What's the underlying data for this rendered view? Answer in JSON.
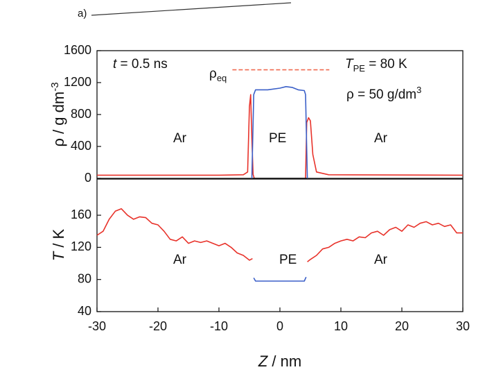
{
  "panel_label": "a)",
  "chart_data": [
    {
      "type": "line",
      "xlim": [
        -30,
        30
      ],
      "ylim": [
        0,
        1600
      ],
      "yticks": [
        0,
        400,
        800,
        1200,
        1600
      ],
      "ylabel": [
        "ρ / g dm",
        "-3"
      ],
      "annotations": [
        {
          "parts": [
            "t",
            " = 0.5 ns"
          ]
        },
        {
          "parts": [
            "ρ",
            "eq"
          ]
        },
        {
          "parts": [
            "T",
            "PE",
            " = 80 K"
          ]
        },
        {
          "parts": [
            "ρ = 50 g/dm",
            "3"
          ]
        },
        {
          "parts": [
            "Ar"
          ]
        },
        {
          "parts": [
            "PE"
          ]
        },
        {
          "parts": [
            "Ar"
          ]
        }
      ],
      "series": [
        {
          "color": "#e8322a",
          "x": [
            -30,
            -20,
            -10,
            -6,
            -5.3,
            -5,
            -4.8,
            -4.6,
            -4.4,
            -4.2
          ],
          "values": [
            40,
            40,
            40,
            45,
            80,
            900,
            1050,
            500,
            50,
            0
          ]
        },
        {
          "color": "#e8322a",
          "x": [
            4.2,
            4.4,
            4.7,
            5,
            5.4,
            6,
            8,
            30
          ],
          "values": [
            0,
            700,
            760,
            720,
            300,
            80,
            45,
            40
          ]
        },
        {
          "color": "#111111",
          "x": [
            -4.4,
            4.4
          ],
          "values": [
            0,
            0
          ]
        },
        {
          "color": "#3a5fc8",
          "x": [
            -4.6,
            -4.3,
            -4,
            -2,
            0,
            1,
            2,
            3,
            4,
            4.2,
            4.5
          ],
          "values": [
            0,
            1050,
            1110,
            1110,
            1130,
            1150,
            1140,
            1110,
            1100,
            1050,
            0
          ]
        },
        {
          "color": "#f06a50",
          "dashed": true,
          "x": [
            -7.8,
            8.1
          ],
          "values": [
            1360,
            1360
          ]
        }
      ]
    },
    {
      "type": "line",
      "xlim": [
        -30,
        30
      ],
      "xticks": [
        -30,
        -20,
        -10,
        0,
        10,
        20,
        30
      ],
      "ylim": [
        40,
        205
      ],
      "yticks": [
        40,
        80,
        120,
        160
      ],
      "ylabel": [
        "T",
        " / K"
      ],
      "xlabel": [
        "Z",
        " / nm"
      ],
      "annotations": [
        {
          "parts": [
            "Ar"
          ]
        },
        {
          "parts": [
            "PE"
          ]
        },
        {
          "parts": [
            "Ar"
          ]
        }
      ],
      "series": [
        {
          "color": "#e8322a",
          "x": [
            -30,
            -29,
            -28,
            -27,
            -26,
            -25,
            -24,
            -23,
            -22,
            -21,
            -20,
            -19,
            -18,
            -17,
            -16,
            -15,
            -14,
            -13,
            -12,
            -11,
            -10,
            -9,
            -8,
            -7,
            -6,
            -5,
            -4.5
          ],
          "values": [
            135,
            140,
            155,
            165,
            168,
            160,
            155,
            158,
            157,
            150,
            148,
            140,
            130,
            128,
            133,
            125,
            128,
            126,
            128,
            125,
            122,
            125,
            120,
            113,
            110,
            104,
            106
          ]
        },
        {
          "color": "#e8322a",
          "x": [
            4.5,
            5,
            6,
            7,
            8,
            9,
            10,
            11,
            12,
            13,
            14,
            15,
            16,
            17,
            18,
            19,
            20,
            21,
            22,
            23,
            24,
            25,
            26,
            27,
            28,
            29,
            30
          ],
          "values": [
            102,
            105,
            110,
            118,
            120,
            125,
            128,
            130,
            128,
            133,
            132,
            138,
            140,
            135,
            142,
            145,
            140,
            148,
            145,
            150,
            152,
            148,
            150,
            146,
            148,
            138,
            138
          ]
        },
        {
          "color": "#3a5fc8",
          "x": [
            -4.3,
            -4,
            4,
            4.3
          ],
          "values": [
            82,
            78,
            78,
            83
          ]
        }
      ]
    }
  ]
}
